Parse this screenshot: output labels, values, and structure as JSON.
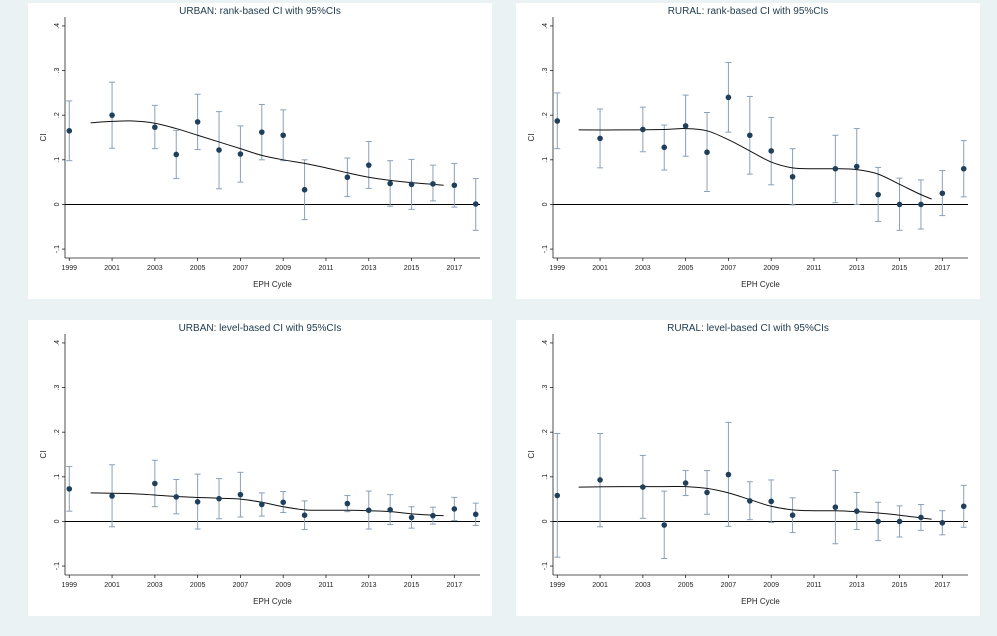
{
  "colors": {
    "background": "#eaf2f3",
    "panel": "#ffffff",
    "marker": "#1f3f5b",
    "line": "#111111",
    "ci_bar": "#8aa0b8",
    "title": "#1e3a4c"
  },
  "chart_data": [
    {
      "type": "scatter",
      "title": "URBAN: rank-based CI with 95%CIs",
      "xlabel": "EPH Cycle",
      "ylabel": "CI",
      "xticks": [
        "1999",
        "2001",
        "2003",
        "2005",
        "2007",
        "2009",
        "2011",
        "2013",
        "2015",
        "2017"
      ],
      "yticks": [
        "-.1",
        "0",
        ".1",
        ".2",
        ".3",
        ".4"
      ],
      "xlim": [
        1998.8,
        2018.2
      ],
      "ylim": [
        -0.12,
        0.42
      ],
      "reference_line": 0,
      "points": [
        {
          "x": 1999,
          "y": 0.165,
          "lo": 0.098,
          "hi": 0.232
        },
        {
          "x": 2001,
          "y": 0.2,
          "lo": 0.126,
          "hi": 0.274
        },
        {
          "x": 2003,
          "y": 0.173,
          "lo": 0.125,
          "hi": 0.222
        },
        {
          "x": 2004,
          "y": 0.112,
          "lo": 0.058,
          "hi": 0.166
        },
        {
          "x": 2005,
          "y": 0.185,
          "lo": 0.123,
          "hi": 0.247
        },
        {
          "x": 2006,
          "y": 0.122,
          "lo": 0.035,
          "hi": 0.208
        },
        {
          "x": 2007,
          "y": 0.113,
          "lo": 0.05,
          "hi": 0.176
        },
        {
          "x": 2008,
          "y": 0.162,
          "lo": 0.1,
          "hi": 0.224
        },
        {
          "x": 2009,
          "y": 0.155,
          "lo": 0.098,
          "hi": 0.212
        },
        {
          "x": 2010,
          "y": 0.033,
          "lo": -0.034,
          "hi": 0.1
        },
        {
          "x": 2012,
          "y": 0.061,
          "lo": 0.018,
          "hi": 0.104
        },
        {
          "x": 2013,
          "y": 0.088,
          "lo": 0.036,
          "hi": 0.141
        },
        {
          "x": 2014,
          "y": 0.047,
          "lo": -0.004,
          "hi": 0.098
        },
        {
          "x": 2015,
          "y": 0.045,
          "lo": -0.011,
          "hi": 0.101
        },
        {
          "x": 2016,
          "y": 0.046,
          "lo": 0.008,
          "hi": 0.088
        },
        {
          "x": 2017,
          "y": 0.043,
          "lo": -0.006,
          "hi": 0.092
        },
        {
          "x": 2018,
          "y": 0.001,
          "lo": -0.058,
          "hi": 0.058
        }
      ],
      "fit": [
        [
          2000,
          0.183
        ],
        [
          2001,
          0.186
        ],
        [
          2002,
          0.187
        ],
        [
          2003,
          0.182
        ],
        [
          2004,
          0.17
        ],
        [
          2005,
          0.155
        ],
        [
          2006,
          0.14
        ],
        [
          2007,
          0.125
        ],
        [
          2008,
          0.11
        ],
        [
          2009,
          0.1
        ],
        [
          2010,
          0.092
        ],
        [
          2011,
          0.082
        ],
        [
          2012,
          0.071
        ],
        [
          2013,
          0.061
        ],
        [
          2014,
          0.054
        ],
        [
          2015,
          0.049
        ],
        [
          2016,
          0.045
        ],
        [
          2016.5,
          0.043
        ]
      ]
    },
    {
      "type": "scatter",
      "title": "RURAL: rank-based CI with 95%CIs",
      "xlabel": "EPH Cycle",
      "ylabel": "CI",
      "xticks": [
        "1999",
        "2001",
        "2003",
        "2005",
        "2007",
        "2009",
        "2011",
        "2013",
        "2015",
        "2017"
      ],
      "yticks": [
        "-.1",
        "0",
        ".1",
        ".2",
        ".3",
        ".4"
      ],
      "xlim": [
        1998.8,
        2018.2
      ],
      "ylim": [
        -0.12,
        0.42
      ],
      "reference_line": 0,
      "points": [
        {
          "x": 1999,
          "y": 0.187,
          "lo": 0.125,
          "hi": 0.25
        },
        {
          "x": 2001,
          "y": 0.148,
          "lo": 0.082,
          "hi": 0.214
        },
        {
          "x": 2003,
          "y": 0.168,
          "lo": 0.118,
          "hi": 0.218
        },
        {
          "x": 2004,
          "y": 0.128,
          "lo": 0.077,
          "hi": 0.178
        },
        {
          "x": 2005,
          "y": 0.176,
          "lo": 0.108,
          "hi": 0.245
        },
        {
          "x": 2006,
          "y": 0.117,
          "lo": 0.029,
          "hi": 0.206
        },
        {
          "x": 2007,
          "y": 0.24,
          "lo": 0.162,
          "hi": 0.318
        },
        {
          "x": 2008,
          "y": 0.155,
          "lo": 0.068,
          "hi": 0.242
        },
        {
          "x": 2009,
          "y": 0.12,
          "lo": 0.044,
          "hi": 0.195
        },
        {
          "x": 2010,
          "y": 0.062,
          "lo": -0.001,
          "hi": 0.125
        },
        {
          "x": 2012,
          "y": 0.08,
          "lo": 0.004,
          "hi": 0.155
        },
        {
          "x": 2013,
          "y": 0.085,
          "lo": 0.0,
          "hi": 0.17
        },
        {
          "x": 2014,
          "y": 0.022,
          "lo": -0.038,
          "hi": 0.083
        },
        {
          "x": 2015,
          "y": 0.0,
          "lo": -0.058,
          "hi": 0.059
        },
        {
          "x": 2016,
          "y": 0.0,
          "lo": -0.055,
          "hi": 0.055
        },
        {
          "x": 2017,
          "y": 0.025,
          "lo": -0.025,
          "hi": 0.076
        },
        {
          "x": 2018,
          "y": 0.08,
          "lo": 0.017,
          "hi": 0.143
        }
      ],
      "fit": [
        [
          2000,
          0.167
        ],
        [
          2002,
          0.167
        ],
        [
          2004,
          0.168
        ],
        [
          2005,
          0.17
        ],
        [
          2006,
          0.165
        ],
        [
          2007,
          0.145
        ],
        [
          2008,
          0.12
        ],
        [
          2009,
          0.095
        ],
        [
          2010,
          0.082
        ],
        [
          2011,
          0.08
        ],
        [
          2012,
          0.08
        ],
        [
          2013,
          0.078
        ],
        [
          2014,
          0.068
        ],
        [
          2015,
          0.045
        ],
        [
          2016,
          0.022
        ],
        [
          2016.5,
          0.012
        ]
      ]
    },
    {
      "type": "scatter",
      "title": "URBAN: level-based CI with 95%CIs",
      "xlabel": "EPH Cycle",
      "ylabel": "CI",
      "xticks": [
        "1999",
        "2001",
        "2003",
        "2005",
        "2007",
        "2009",
        "2011",
        "2013",
        "2015",
        "2017"
      ],
      "yticks": [
        "-.1",
        "0",
        ".1",
        ".2",
        ".3",
        ".4"
      ],
      "xlim": [
        1998.8,
        2018.2
      ],
      "ylim": [
        -0.12,
        0.42
      ],
      "reference_line": 0,
      "points": [
        {
          "x": 1999,
          "y": 0.073,
          "lo": 0.023,
          "hi": 0.123
        },
        {
          "x": 2001,
          "y": 0.057,
          "lo": -0.012,
          "hi": 0.127
        },
        {
          "x": 2003,
          "y": 0.085,
          "lo": 0.033,
          "hi": 0.137
        },
        {
          "x": 2004,
          "y": 0.055,
          "lo": 0.017,
          "hi": 0.094
        },
        {
          "x": 2005,
          "y": 0.044,
          "lo": -0.017,
          "hi": 0.106
        },
        {
          "x": 2006,
          "y": 0.051,
          "lo": 0.006,
          "hi": 0.096
        },
        {
          "x": 2007,
          "y": 0.06,
          "lo": 0.01,
          "hi": 0.11
        },
        {
          "x": 2008,
          "y": 0.038,
          "lo": 0.012,
          "hi": 0.064
        },
        {
          "x": 2009,
          "y": 0.043,
          "lo": 0.02,
          "hi": 0.067
        },
        {
          "x": 2010,
          "y": 0.014,
          "lo": -0.018,
          "hi": 0.046
        },
        {
          "x": 2012,
          "y": 0.04,
          "lo": 0.022,
          "hi": 0.058
        },
        {
          "x": 2013,
          "y": 0.025,
          "lo": -0.017,
          "hi": 0.068
        },
        {
          "x": 2014,
          "y": 0.026,
          "lo": -0.007,
          "hi": 0.06
        },
        {
          "x": 2015,
          "y": 0.009,
          "lo": -0.015,
          "hi": 0.033
        },
        {
          "x": 2016,
          "y": 0.013,
          "lo": -0.006,
          "hi": 0.032
        },
        {
          "x": 2017,
          "y": 0.028,
          "lo": 0.002,
          "hi": 0.054
        },
        {
          "x": 2018,
          "y": 0.016,
          "lo": -0.009,
          "hi": 0.041
        }
      ],
      "fit": [
        [
          2000,
          0.064
        ],
        [
          2002,
          0.062
        ],
        [
          2004,
          0.056
        ],
        [
          2006,
          0.052
        ],
        [
          2007,
          0.05
        ],
        [
          2008,
          0.043
        ],
        [
          2009,
          0.033
        ],
        [
          2010,
          0.026
        ],
        [
          2011,
          0.025
        ],
        [
          2012,
          0.025
        ],
        [
          2013,
          0.024
        ],
        [
          2014,
          0.022
        ],
        [
          2015,
          0.017
        ],
        [
          2016,
          0.014
        ],
        [
          2016.5,
          0.013
        ]
      ]
    },
    {
      "type": "scatter",
      "title": "RURAL: level-based CI with 95%CIs",
      "xlabel": "EPH Cycle",
      "ylabel": "CI",
      "xticks": [
        "1999",
        "2001",
        "2003",
        "2005",
        "2007",
        "2009",
        "2011",
        "2013",
        "2015",
        "2017"
      ],
      "yticks": [
        "-.1",
        "0",
        ".1",
        ".2",
        ".3",
        ".4"
      ],
      "xlim": [
        1998.8,
        2018.2
      ],
      "ylim": [
        -0.12,
        0.42
      ],
      "reference_line": 0,
      "points": [
        {
          "x": 1999,
          "y": 0.058,
          "lo": -0.08,
          "hi": 0.197
        },
        {
          "x": 2001,
          "y": 0.093,
          "lo": -0.012,
          "hi": 0.197
        },
        {
          "x": 2003,
          "y": 0.077,
          "lo": 0.007,
          "hi": 0.148
        },
        {
          "x": 2004,
          "y": -0.008,
          "lo": -0.083,
          "hi": 0.068
        },
        {
          "x": 2005,
          "y": 0.086,
          "lo": 0.058,
          "hi": 0.114
        },
        {
          "x": 2006,
          "y": 0.065,
          "lo": 0.016,
          "hi": 0.114
        },
        {
          "x": 2007,
          "y": 0.105,
          "lo": -0.011,
          "hi": 0.222
        },
        {
          "x": 2008,
          "y": 0.046,
          "lo": 0.004,
          "hi": 0.089
        },
        {
          "x": 2009,
          "y": 0.045,
          "lo": -0.002,
          "hi": 0.093
        },
        {
          "x": 2010,
          "y": 0.014,
          "lo": -0.025,
          "hi": 0.053
        },
        {
          "x": 2012,
          "y": 0.032,
          "lo": -0.05,
          "hi": 0.114
        },
        {
          "x": 2013,
          "y": 0.023,
          "lo": -0.018,
          "hi": 0.065
        },
        {
          "x": 2014,
          "y": 0.0,
          "lo": -0.043,
          "hi": 0.043
        },
        {
          "x": 2015,
          "y": 0.0,
          "lo": -0.035,
          "hi": 0.035
        },
        {
          "x": 2016,
          "y": 0.009,
          "lo": -0.02,
          "hi": 0.038
        },
        {
          "x": 2017,
          "y": -0.003,
          "lo": -0.03,
          "hi": 0.024
        },
        {
          "x": 2018,
          "y": 0.034,
          "lo": -0.013,
          "hi": 0.081
        }
      ],
      "fit": [
        [
          2000,
          0.077
        ],
        [
          2002,
          0.078
        ],
        [
          2004,
          0.078
        ],
        [
          2005,
          0.078
        ],
        [
          2006,
          0.074
        ],
        [
          2007,
          0.064
        ],
        [
          2008,
          0.049
        ],
        [
          2009,
          0.034
        ],
        [
          2010,
          0.026
        ],
        [
          2011,
          0.024
        ],
        [
          2012,
          0.024
        ],
        [
          2013,
          0.022
        ],
        [
          2014,
          0.019
        ],
        [
          2015,
          0.014
        ],
        [
          2016,
          0.008
        ],
        [
          2016.5,
          0.005
        ]
      ]
    }
  ]
}
